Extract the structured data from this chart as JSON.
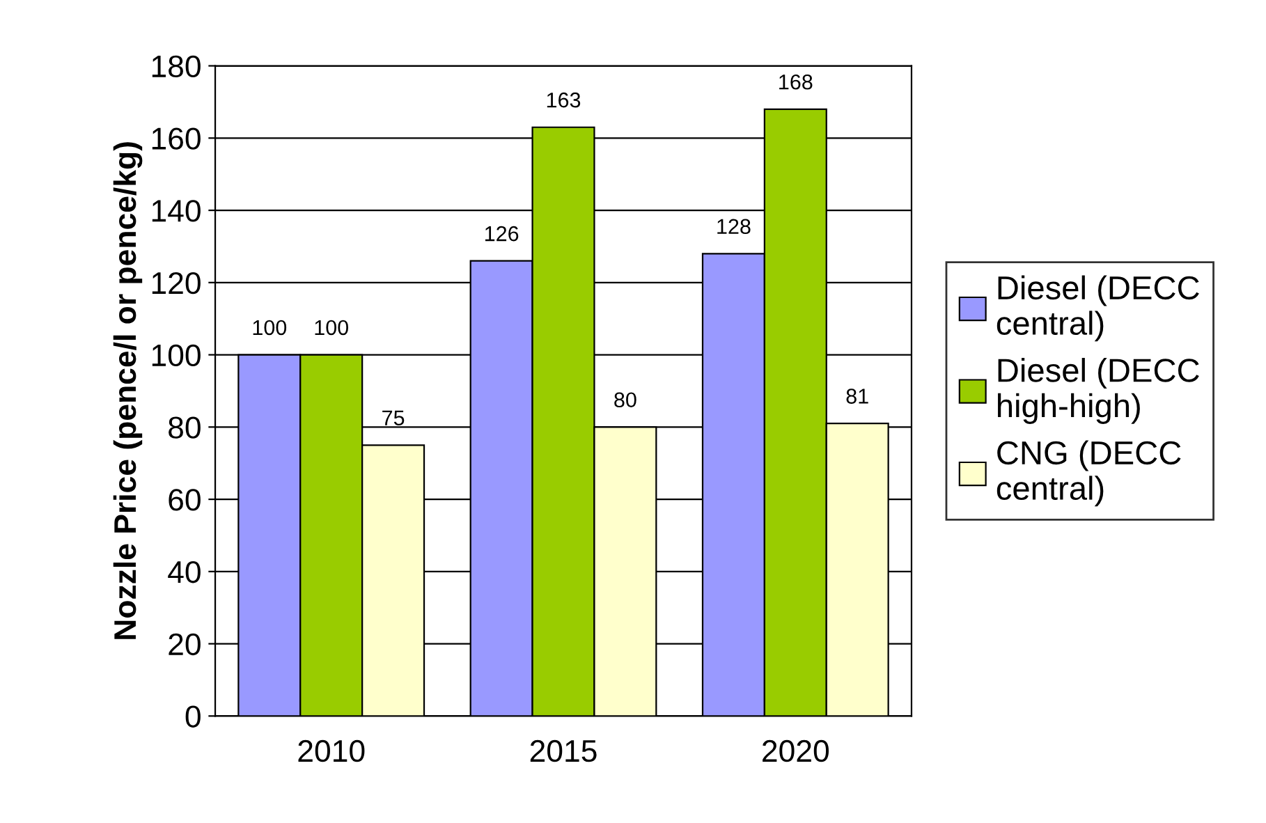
{
  "chart_data": {
    "type": "bar",
    "ylabel": "Nozzle Price (pence/l or pence/kg)",
    "categories": [
      "2010",
      "2015",
      "2020"
    ],
    "series": [
      {
        "name": "Diesel (DECC central)",
        "color": "#9999ff",
        "values": [
          100,
          126,
          128
        ]
      },
      {
        "name": "Diesel (DECC high-high)",
        "color": "#99cc00",
        "values": [
          100,
          163,
          168
        ]
      },
      {
        "name": "CNG (DECC central)",
        "color": "#ffffcc",
        "values": [
          75,
          80,
          81
        ]
      }
    ],
    "ylim": [
      0,
      180
    ],
    "yticks": [
      0,
      20,
      40,
      60,
      80,
      100,
      120,
      140,
      160,
      180
    ],
    "grid": "y",
    "legend": "right",
    "data_labels": true
  }
}
